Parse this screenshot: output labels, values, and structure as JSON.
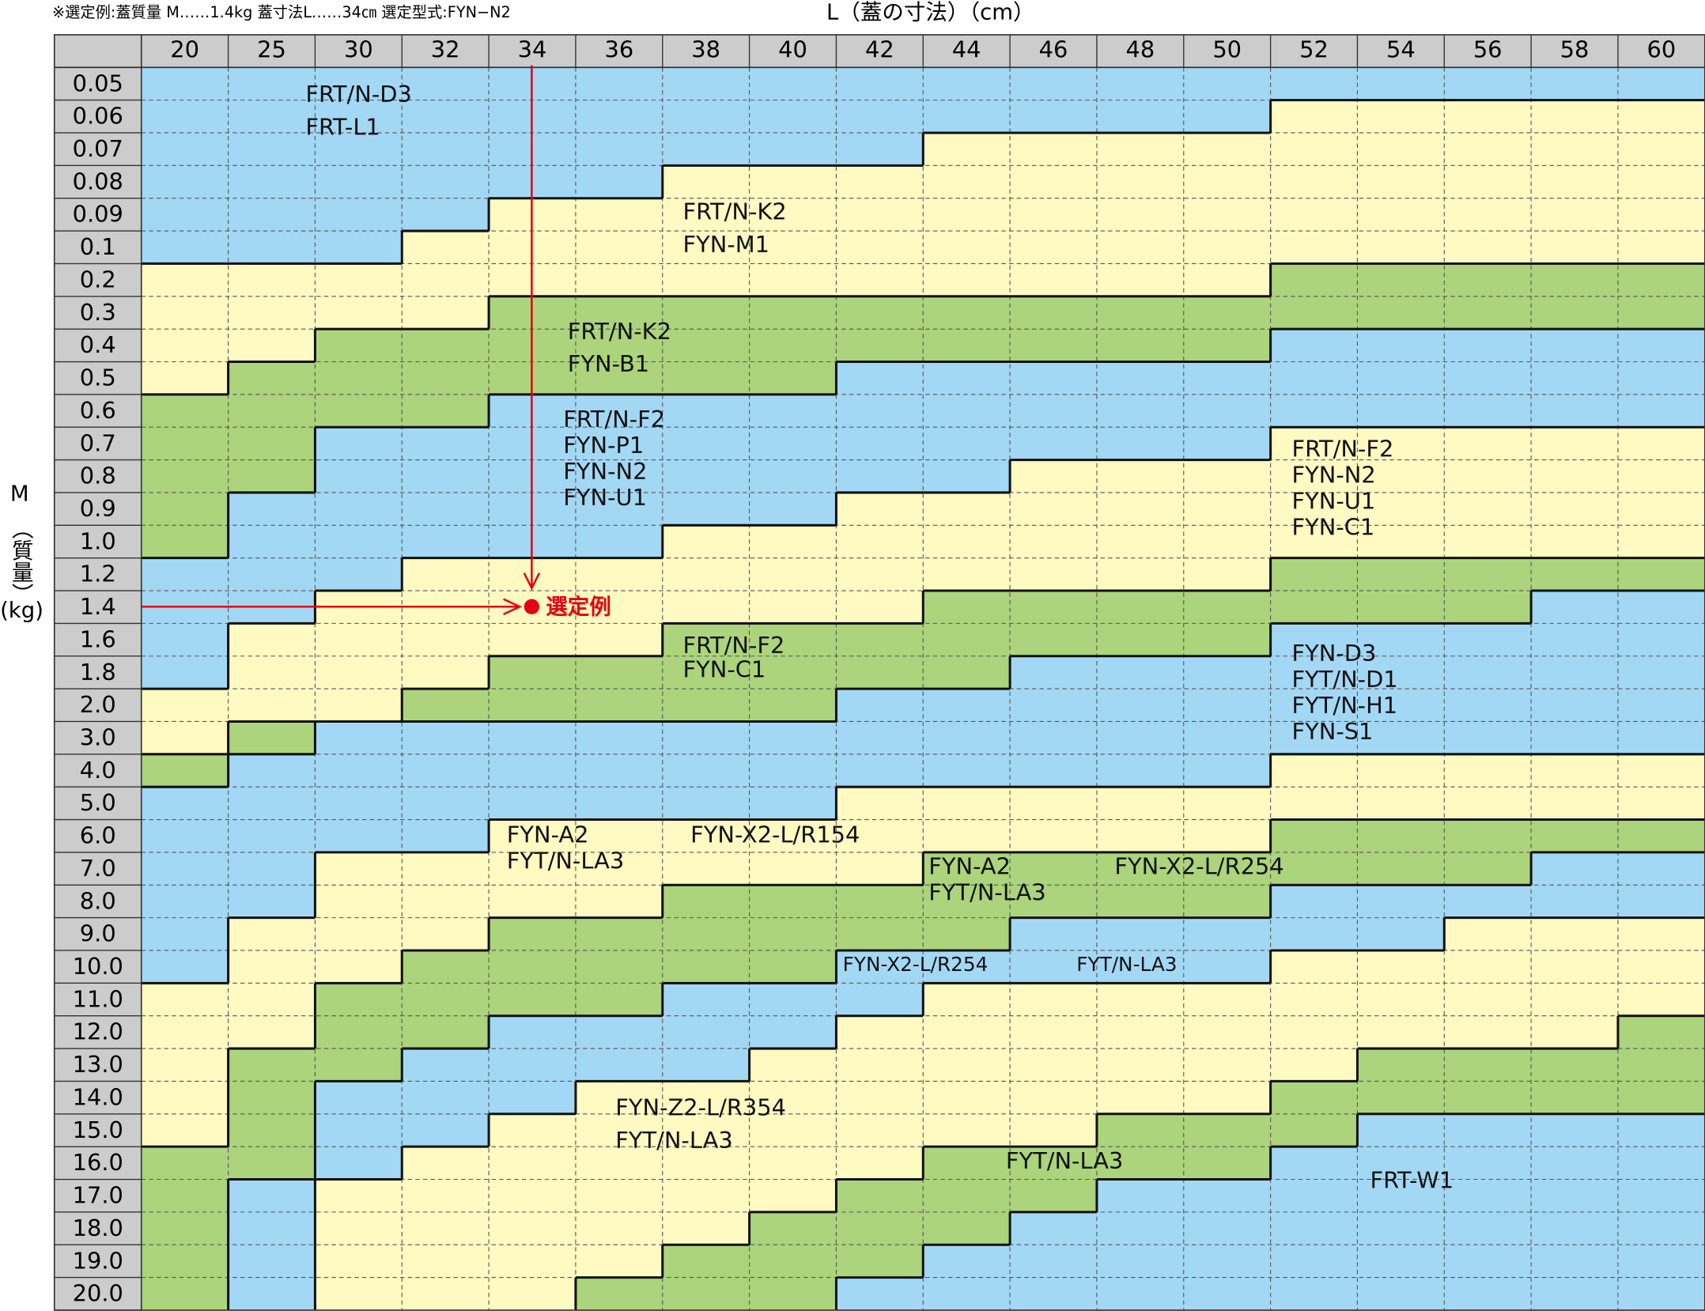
{
  "note": "※選定例:蓋質量 M……1.4kg 蓋寸法L……34㎝ 選定型式:FYN−N2",
  "x_axis": {
    "title": "L（蓋の寸法）（cm）",
    "columns": [
      "20",
      "25",
      "30",
      "32",
      "34",
      "36",
      "38",
      "40",
      "42",
      "44",
      "46",
      "48",
      "50",
      "52",
      "54",
      "56",
      "58",
      "60"
    ]
  },
  "y_axis": {
    "title_parts": [
      "M",
      "（質量）",
      "(kg)"
    ],
    "rows": [
      "0.05",
      "0.06",
      "0.07",
      "0.08",
      "0.09",
      "0.1",
      "0.2",
      "0.3",
      "0.4",
      "0.5",
      "0.6",
      "0.7",
      "0.8",
      "0.9",
      "1.0",
      "1.2",
      "1.4",
      "1.6",
      "1.8",
      "2.0",
      "3.0",
      "4.0",
      "5.0",
      "6.0",
      "7.0",
      "8.0",
      "9.0",
      "10.0",
      "11.0",
      "12.0",
      "13.0",
      "14.0",
      "15.0",
      "16.0",
      "17.0",
      "18.0",
      "19.0",
      "20.0"
    ]
  },
  "regions": [
    {
      "lines": [
        "FRT/N-D3",
        "FRT-L1"
      ]
    },
    {
      "lines": [
        "FRT/N-K2",
        "FYN-M1"
      ]
    },
    {
      "lines": [
        "FRT/N-K2",
        "FYN-B1"
      ]
    },
    {
      "lines": [
        "FRT/N-F2",
        "FYN-P1",
        "FYN-N2",
        "FYN-U1"
      ]
    },
    {
      "lines": [
        "FRT/N-F2",
        "FYN-N2",
        "FYN-U1",
        "FYN-C1"
      ]
    },
    {
      "lines": [
        "FRT/N-F2",
        "FYN-C1"
      ]
    },
    {
      "lines": [
        "FYN-D3",
        "FYT/N-D1",
        "FYT/N-H1",
        "FYN-S1"
      ]
    },
    {
      "lines": [
        "FYN-A2",
        "FYT/N-LA3"
      ]
    },
    {
      "lines": [
        "FYN-X2-L/R154"
      ]
    },
    {
      "lines": [
        "FYN-A2",
        "FYT/N-LA3"
      ]
    },
    {
      "lines": [
        "FYN-X2-L/R254"
      ]
    },
    {
      "lines": [
        "FYN-X2-L/R254"
      ]
    },
    {
      "lines": [
        "FYT/N-LA3"
      ]
    },
    {
      "lines": [
        "FYN-Z2-L/R354",
        "FYT/N-LA3"
      ]
    },
    {
      "lines": [
        "FYT/N-LA3"
      ]
    },
    {
      "lines": [
        "FRT-W1"
      ]
    }
  ],
  "example_label": "選定例"
}
